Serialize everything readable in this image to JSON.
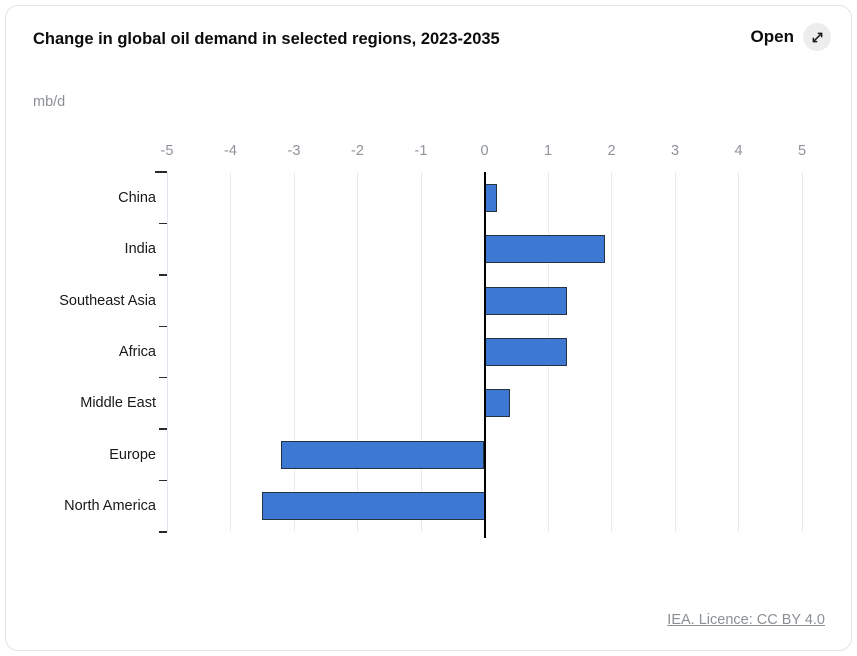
{
  "header": {
    "title": "Change in global oil demand in selected regions, 2023-2035",
    "open_label": "Open",
    "open_icon": "expand-diagonal-arrow"
  },
  "unit_label": "mb/d",
  "footer": {
    "license_link": "IEA. Licence: CC BY 4.0"
  },
  "colors": {
    "bar_fill": "#3d79d3",
    "bar_border": "#263240",
    "grid": "#e9ebef",
    "zero_line": "#000000",
    "axis_text": "#8f939a",
    "category_text": "#17181a"
  },
  "chart_data": {
    "type": "bar",
    "orientation": "horizontal",
    "title": "Change in global oil demand in selected regions, 2023-2035",
    "xlabel": "",
    "ylabel": "mb/d",
    "categories": [
      "China",
      "India",
      "Southeast Asia",
      "Africa",
      "Middle East",
      "Europe",
      "North America"
    ],
    "values": [
      0.2,
      1.9,
      1.3,
      1.3,
      0.4,
      -3.2,
      -3.5
    ],
    "xlim": [
      -5,
      5
    ],
    "x_ticks": [
      -5,
      -4,
      -3,
      -2,
      -1,
      0,
      1,
      2,
      3,
      4,
      5
    ],
    "grid": true,
    "legend": false
  }
}
